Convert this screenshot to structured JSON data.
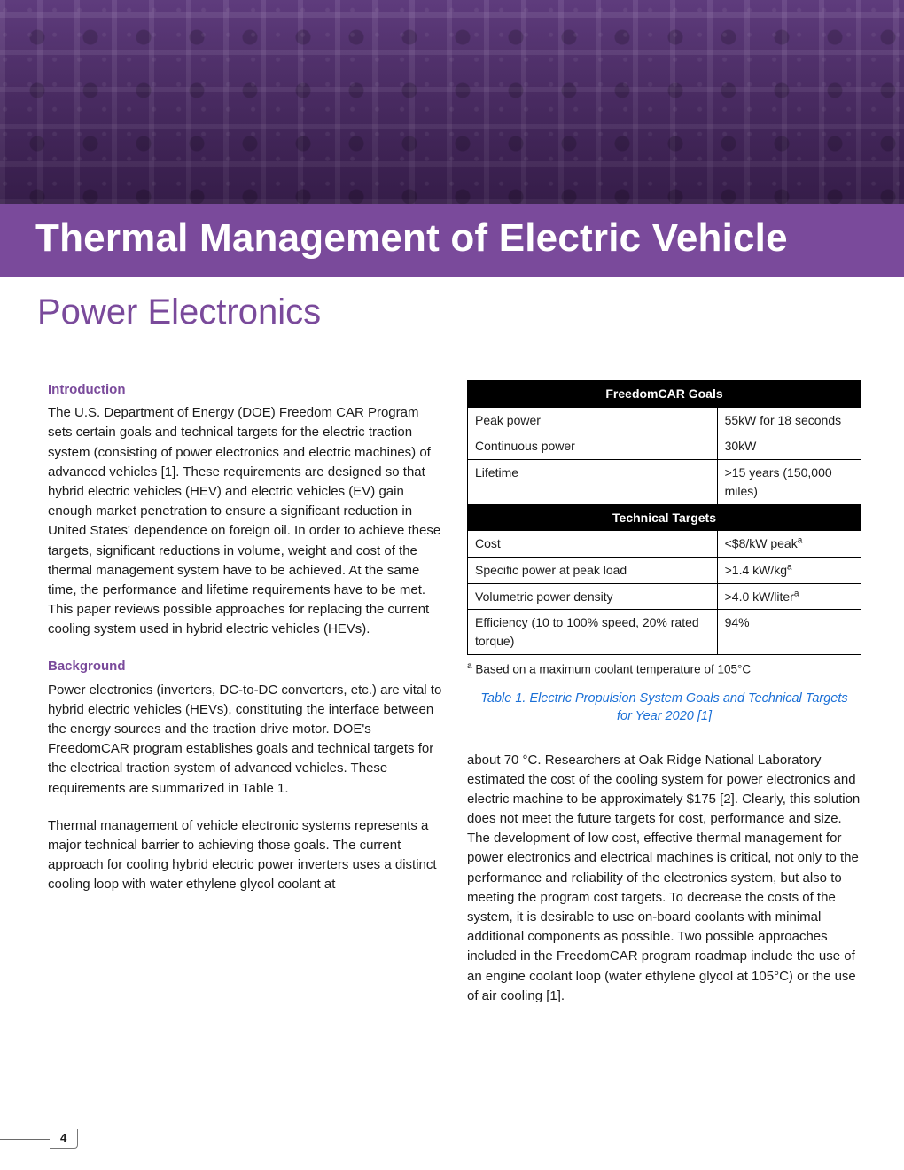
{
  "colors": {
    "brand_purple": "#7a4a9b",
    "banner_dark": "#3a1f4f",
    "text": "#1a1a1a",
    "link_blue": "#1a6fd6",
    "table_header_bg": "#000000",
    "table_header_fg": "#ffffff"
  },
  "title": "Thermal Management of Electric Vehicle",
  "subtitle": "Power Electronics",
  "sections": {
    "intro_head": "Introduction",
    "intro_body": "The U.S. Department of Energy (DOE) Freedom CAR Program sets certain goals and technical targets for the electric traction system (consisting of power electronics and electric machines) of advanced vehicles [1]. These requirements are designed so that hybrid electric vehicles (HEV) and electric vehicles (EV) gain enough market penetration to ensure a significant reduction in United States' dependence on foreign oil. In order to achieve these targets, significant reductions in volume, weight and cost of the thermal management system have to be achieved. At the same time, the performance and lifetime requirements have to be met. This paper reviews possible approaches for replacing the current cooling system used in hybrid electric vehicles (HEVs).",
    "bg_head": "Background",
    "bg_body1": "Power electronics (inverters, DC-to-DC converters, etc.) are vital to hybrid electric vehicles (HEVs), constituting the interface between the energy sources and the traction drive motor. DOE's FreedomCAR program establishes goals and technical targets for the electrical traction system of advanced vehicles. These requirements are summarized in Table 1.",
    "bg_body2": "Thermal management of vehicle electronic systems represents a major technical barrier to achieving those goals. The current approach for cooling hybrid electric power inverters uses a distinct cooling loop with water ethylene glycol coolant at",
    "col2_body": "about 70 °C. Researchers at Oak Ridge National Laboratory estimated the cost of the cooling system for power electronics and electric machine to be approximately $175 [2]. Clearly, this solution does not meet the future targets for cost, performance and size. The development of low cost, effective thermal management for power electronics and electrical machines is critical, not only to the performance and reliability of the electronics system, but also to meeting the program cost targets. To decrease the costs of the system, it is desirable to use on-board coolants with minimal additional components as possible. Two possible approaches included in the FreedomCAR program roadmap include the use of an engine coolant loop (water ethylene glycol at 105°C) or the use of air cooling [1]."
  },
  "table": {
    "header1": "FreedomCAR Goals",
    "header2": "Technical Targets",
    "goals": [
      {
        "label": "Peak power",
        "value": "55kW for 18 seconds"
      },
      {
        "label": "Continuous power",
        "value": "30kW"
      },
      {
        "label": "Lifetime",
        "value": ">15 years (150,000 miles)"
      }
    ],
    "targets": [
      {
        "label": "Cost",
        "value": "<$8/kW peak",
        "sup": "a"
      },
      {
        "label": "Specific power at peak load",
        "value": ">1.4 kW/kg",
        "sup": "a"
      },
      {
        "label": "Volumetric power density",
        "value": ">4.0 kW/liter",
        "sup": "a"
      },
      {
        "label": "Efficiency (10 to 100% speed, 20% rated torque)",
        "value": "94%",
        "sup": ""
      }
    ],
    "footnote_sup": "a",
    "footnote": " Based on a maximum coolant temperature of 105°C"
  },
  "caption": "Table 1. Electric Propulsion System Goals and Technical Targets for Year 2020 [1]",
  "page_number": "4"
}
